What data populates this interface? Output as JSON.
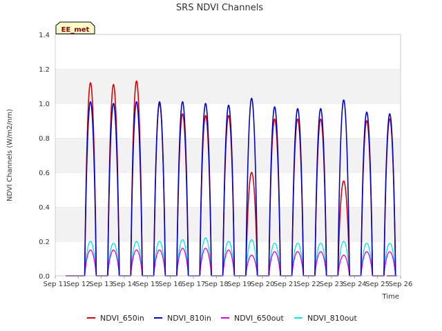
{
  "chart_data": {
    "type": "line",
    "title": "SRS NDVI Channels",
    "xlabel": "Time",
    "ylabel": "NDVI Channels (W/m2/nm)",
    "ylim": [
      0,
      1.4
    ],
    "yticks": [
      "0.0",
      "0.2",
      "0.4",
      "0.6",
      "0.8",
      "1.0",
      "1.2",
      "1.4"
    ],
    "xlim": [
      11,
      26
    ],
    "xticks": [
      "Sep 11",
      "Sep 12",
      "Sep 13",
      "Sep 14",
      "Sep 15",
      "Sep 16",
      "Sep 17",
      "Sep 18",
      "Sep 19",
      "Sep 20",
      "Sep 21",
      "Sep 22",
      "Sep 23",
      "Sep 24",
      "Sep 25",
      "Sep 26"
    ],
    "grid": "horizontal bands",
    "legend_position": "bottom",
    "annotation": "EE_met",
    "day_x": [
      "Sep 12",
      "Sep 13",
      "Sep 14",
      "Sep 15",
      "Sep 16",
      "Sep 17",
      "Sep 18",
      "Sep 19",
      "Sep 20",
      "Sep 21",
      "Sep 22",
      "Sep 23",
      "Sep 24",
      "Sep 25"
    ],
    "series": [
      {
        "name": "NDVI_650in",
        "color": "#dd0000",
        "daily_peak": [
          1.12,
          1.11,
          1.13,
          1.0,
          0.94,
          0.93,
          0.93,
          0.6,
          0.91,
          0.91,
          0.91,
          0.55,
          0.9,
          0.91
        ]
      },
      {
        "name": "NDVI_810in",
        "color": "#0000cc",
        "daily_peak": [
          1.01,
          1.0,
          1.01,
          1.01,
          1.01,
          1.0,
          0.99,
          1.03,
          0.98,
          0.97,
          0.97,
          1.02,
          0.95,
          0.94
        ]
      },
      {
        "name": "NDVI_650out",
        "color": "#dd00dd",
        "daily_peak": [
          0.15,
          0.15,
          0.15,
          0.15,
          0.16,
          0.16,
          0.15,
          0.12,
          0.14,
          0.14,
          0.14,
          0.12,
          0.14,
          0.14
        ]
      },
      {
        "name": "NDVI_810out",
        "color": "#00e5e5",
        "daily_peak": [
          0.2,
          0.19,
          0.2,
          0.2,
          0.21,
          0.22,
          0.2,
          0.21,
          0.19,
          0.19,
          0.19,
          0.2,
          0.19,
          0.19
        ]
      }
    ]
  }
}
